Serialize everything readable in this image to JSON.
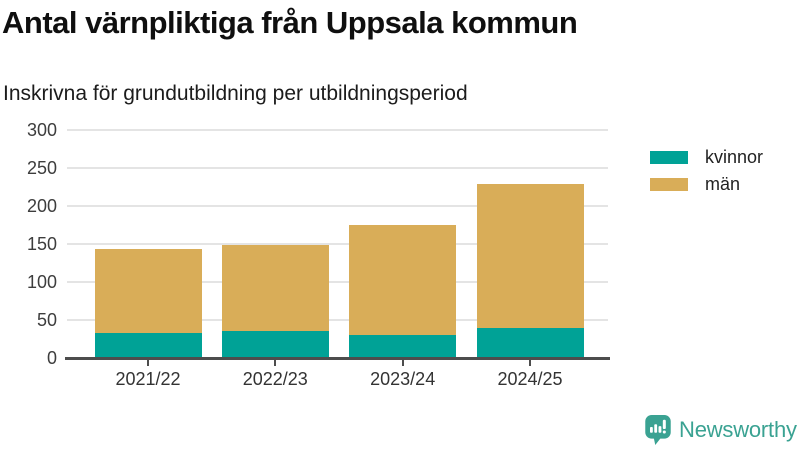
{
  "header": {
    "title": "Antal värnpliktiga från Uppsala kommun",
    "subtitle": "Inskrivna för grundutbildning per utbildningsperiod"
  },
  "chart_data": {
    "type": "bar",
    "stacked": true,
    "title": "Antal värnpliktiga från Uppsala kommun",
    "subtitle": "Inskrivna för grundutbildning per utbildningsperiod",
    "categories": [
      "2021/22",
      "2022/23",
      "2023/24",
      "2024/25"
    ],
    "series": [
      {
        "name": "kvinnor",
        "color": "#00a296",
        "values": [
          33,
          36,
          30,
          40
        ]
      },
      {
        "name": "män",
        "color": "#d9ad58",
        "values": [
          110,
          113,
          145,
          189
        ]
      }
    ],
    "stack_totals": [
      143,
      149,
      175,
      229
    ],
    "ylim": [
      0,
      300
    ],
    "yticks": [
      0,
      50,
      100,
      150,
      200,
      250,
      300
    ],
    "grid": "horizontal",
    "legend_position": "right"
  },
  "branding": {
    "logo_text": "Newsworthy"
  },
  "colors": {
    "kvinnor": "#00a296",
    "man": "#d9ad58",
    "logo_teal": "#3aa292",
    "axis_line": "#4d4d4d",
    "gridline": "#e4e4e4",
    "title_text": "#0f0f0f",
    "axis_text": "#3d3d3d"
  }
}
